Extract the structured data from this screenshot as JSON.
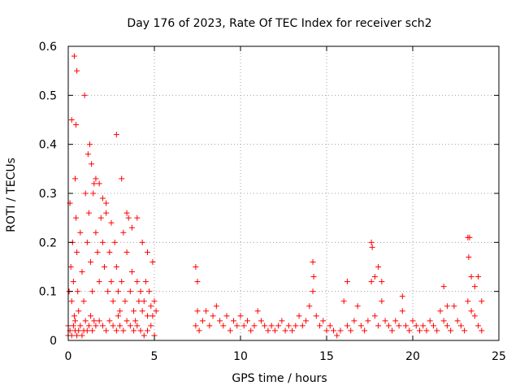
{
  "chart_data": {
    "type": "scatter",
    "title": "Day 176 of 2023, Rate Of TEC Index for receiver sch2",
    "xlabel": "GPS time / hours",
    "ylabel": "ROTI / TECUs",
    "xlim": [
      0,
      25
    ],
    "ylim": [
      0,
      0.6
    ],
    "xticks": [
      "0",
      "5",
      "10",
      "15",
      "20",
      "25"
    ],
    "yticks": [
      "0",
      "0.1",
      "0.2",
      "0.3",
      "0.4",
      "0.5",
      "0.6"
    ],
    "grid": true,
    "marker": "plus",
    "color": "#ff0000",
    "series": [
      {
        "x": [
          0.0,
          0.05,
          0.1,
          0.15,
          0.2,
          0.25,
          0.3,
          0.35,
          0.4,
          0.45,
          0.5,
          0.55,
          0.6,
          0.7,
          0.8,
          0.9,
          1.0,
          1.1,
          1.2,
          1.3,
          1.4,
          1.5,
          1.6,
          1.7,
          1.8,
          1.9,
          2.0,
          2.1,
          2.2,
          2.3,
          2.4,
          2.5,
          2.6,
          2.7,
          2.8,
          2.9,
          3.0,
          3.1,
          3.2,
          3.3,
          3.4,
          3.5,
          3.6,
          3.7,
          3.8,
          3.9,
          4.0,
          4.1,
          4.2,
          4.3,
          4.4,
          4.5,
          4.6,
          4.7,
          4.8,
          4.9,
          5.0,
          5.1,
          7.4,
          7.5,
          7.6,
          7.8,
          8.0,
          8.2,
          8.4,
          8.6,
          8.8,
          9.0,
          9.2,
          9.4,
          9.6,
          9.8,
          10.0,
          10.2,
          10.4,
          10.6,
          10.8,
          11.0,
          11.2,
          11.4,
          11.6,
          11.8,
          12.0,
          12.2,
          12.4,
          12.6,
          12.8,
          13.0,
          13.2,
          13.4,
          13.6,
          13.8,
          14.0,
          14.2,
          14.4,
          14.6,
          14.8,
          15.0,
          15.2,
          15.4,
          15.6,
          15.8,
          16.0,
          16.2,
          16.4,
          16.6,
          16.8,
          17.0,
          17.2,
          17.4,
          17.6,
          17.8,
          18.0,
          18.2,
          18.4,
          18.6,
          18.8,
          19.0,
          19.2,
          19.4,
          19.6,
          19.8,
          20.0,
          20.2,
          20.4,
          20.6,
          20.8,
          21.0,
          21.2,
          21.4,
          21.6,
          21.8,
          22.0,
          22.2,
          22.4,
          22.6,
          22.8,
          23.0,
          23.2,
          23.4,
          23.6,
          23.8,
          24.0,
          0.0,
          0.1,
          0.2,
          0.3,
          0.4,
          0.4,
          0.5,
          0.6,
          0.7,
          0.8,
          0.9,
          1.0,
          1.1,
          1.2,
          1.3,
          1.4,
          1.5,
          1.6,
          1.8,
          2.0,
          2.2,
          2.4,
          2.6,
          2.8,
          2.9,
          3.0,
          3.2,
          3.4,
          3.6,
          3.8,
          4.0,
          4.2,
          4.4,
          4.6,
          4.8,
          5.0,
          7.4,
          7.5,
          14.2,
          14.25,
          16.2,
          17.6,
          17.65,
          17.8,
          18.0,
          18.2,
          19.4,
          21.8,
          22.0,
          23.2,
          23.25,
          23.3,
          23.4,
          23.6,
          23.8,
          24.0,
          0.2,
          0.35,
          0.45,
          0.5,
          0.95,
          1.15,
          1.25,
          1.35,
          1.45,
          1.6,
          1.8,
          2.0,
          2.2,
          2.5,
          2.8,
          3.1,
          3.4,
          3.7,
          4.0,
          4.3,
          4.6,
          4.9
        ],
        "y": [
          0.03,
          0.1,
          0.28,
          0.15,
          0.08,
          0.2,
          0.12,
          0.05,
          0.33,
          0.25,
          0.18,
          0.1,
          0.06,
          0.22,
          0.14,
          0.08,
          0.3,
          0.2,
          0.26,
          0.16,
          0.1,
          0.32,
          0.22,
          0.18,
          0.12,
          0.25,
          0.2,
          0.15,
          0.28,
          0.1,
          0.18,
          0.12,
          0.08,
          0.2,
          0.15,
          0.1,
          0.06,
          0.12,
          0.22,
          0.08,
          0.18,
          0.25,
          0.1,
          0.14,
          0.06,
          0.04,
          0.12,
          0.08,
          0.1,
          0.06,
          0.08,
          0.12,
          0.05,
          0.1,
          0.07,
          0.05,
          0.08,
          0.06,
          0.03,
          0.06,
          0.02,
          0.04,
          0.06,
          0.03,
          0.05,
          0.07,
          0.04,
          0.03,
          0.05,
          0.02,
          0.04,
          0.03,
          0.05,
          0.03,
          0.04,
          0.02,
          0.03,
          0.06,
          0.04,
          0.03,
          0.02,
          0.03,
          0.02,
          0.03,
          0.04,
          0.02,
          0.03,
          0.02,
          0.03,
          0.05,
          0.03,
          0.04,
          0.07,
          0.1,
          0.05,
          0.03,
          0.04,
          0.02,
          0.03,
          0.02,
          0.01,
          0.02,
          0.08,
          0.03,
          0.02,
          0.04,
          0.07,
          0.03,
          0.02,
          0.04,
          0.12,
          0.05,
          0.03,
          0.08,
          0.04,
          0.03,
          0.02,
          0.04,
          0.03,
          0.06,
          0.03,
          0.02,
          0.04,
          0.03,
          0.02,
          0.03,
          0.02,
          0.04,
          0.03,
          0.02,
          0.06,
          0.04,
          0.03,
          0.02,
          0.07,
          0.04,
          0.03,
          0.02,
          0.08,
          0.06,
          0.05,
          0.03,
          0.02,
          0.01,
          0.02,
          0.01,
          0.03,
          0.02,
          0.04,
          0.01,
          0.02,
          0.03,
          0.01,
          0.02,
          0.04,
          0.02,
          0.03,
          0.05,
          0.02,
          0.04,
          0.03,
          0.04,
          0.03,
          0.02,
          0.04,
          0.03,
          0.02,
          0.05,
          0.03,
          0.02,
          0.04,
          0.03,
          0.02,
          0.03,
          0.02,
          0.01,
          0.02,
          0.03,
          0.01,
          0.15,
          0.12,
          0.16,
          0.13,
          0.12,
          0.2,
          0.19,
          0.13,
          0.15,
          0.12,
          0.09,
          0.11,
          0.07,
          0.21,
          0.17,
          0.21,
          0.13,
          0.11,
          0.13,
          0.08,
          0.45,
          0.58,
          0.44,
          0.55,
          0.5,
          0.38,
          0.4,
          0.36,
          0.3,
          0.33,
          0.32,
          0.29,
          0.26,
          0.24,
          0.42,
          0.33,
          0.26,
          0.23,
          0.25,
          0.2,
          0.18,
          0.16
        ]
      }
    ]
  }
}
